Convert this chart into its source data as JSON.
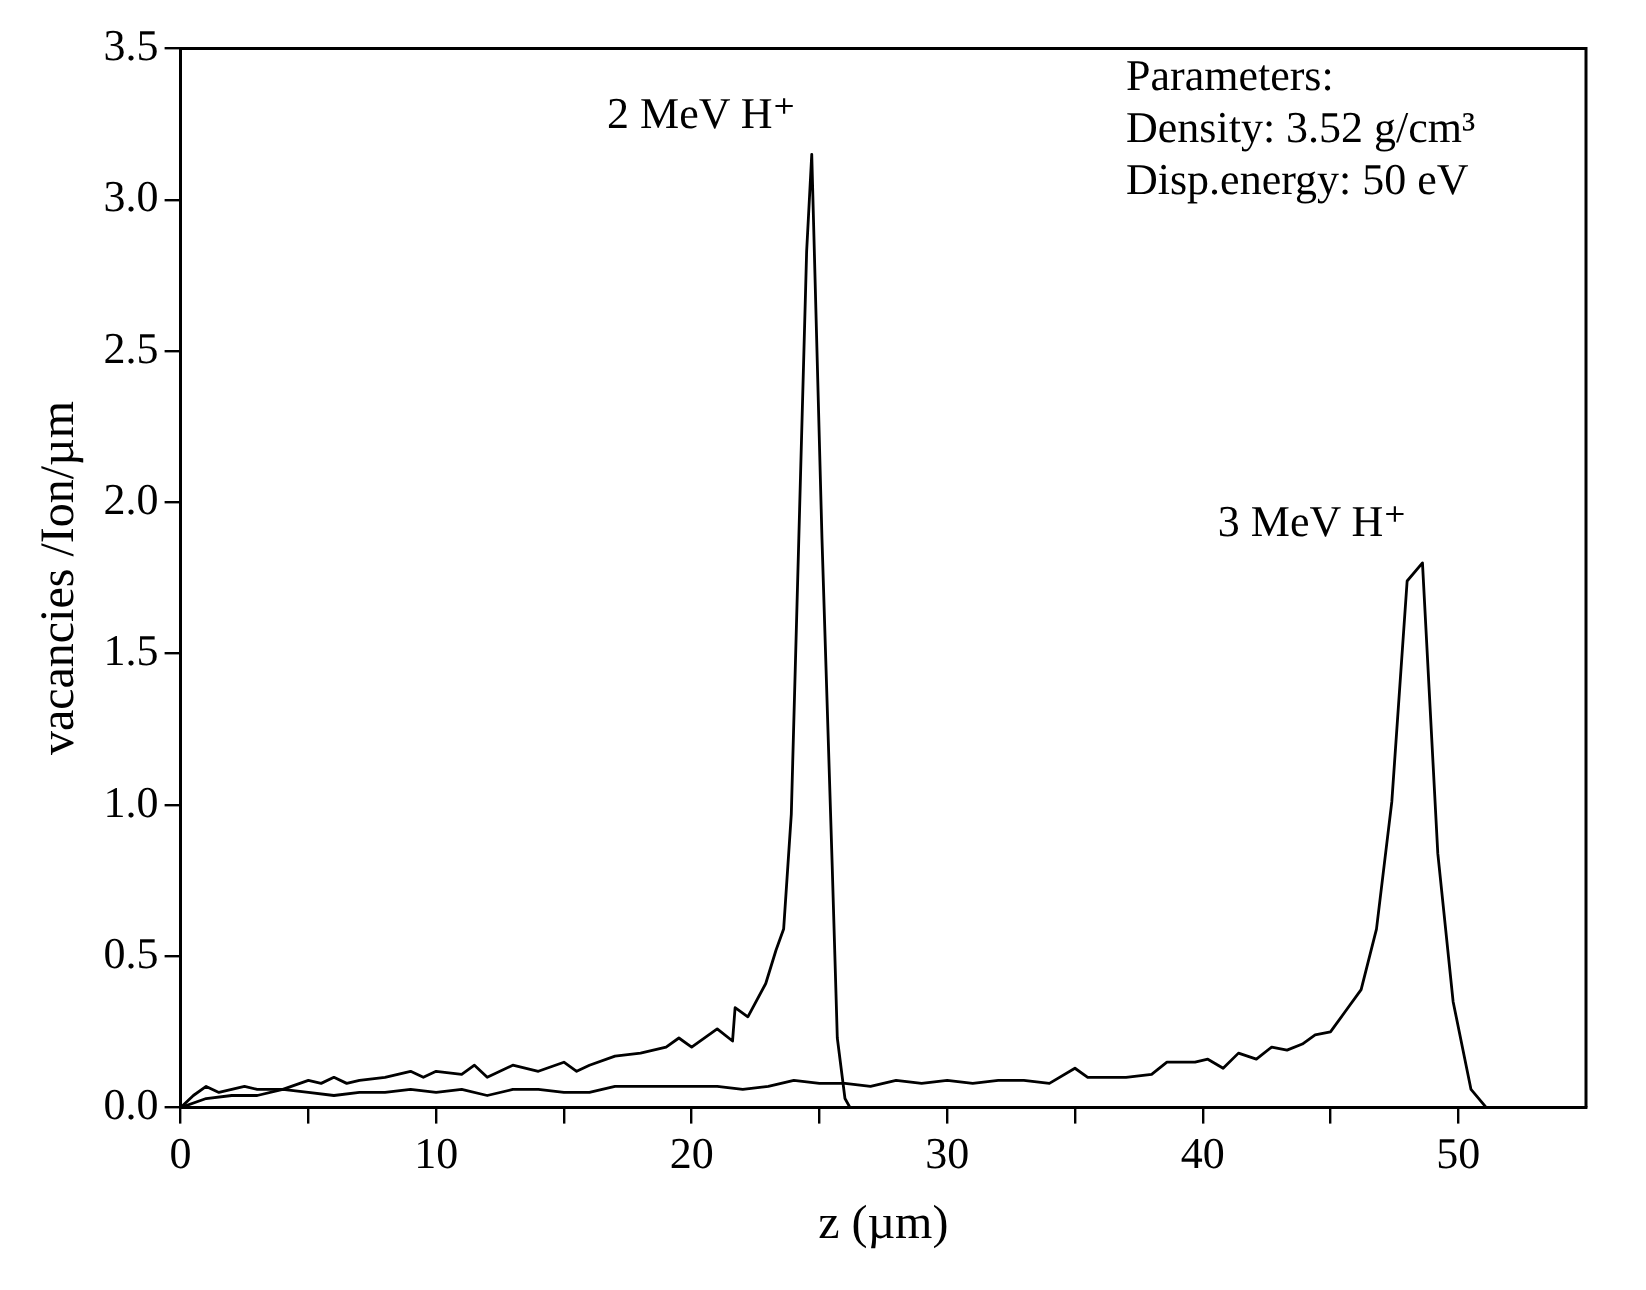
{
  "chart_data": {
    "type": "line",
    "xlabel": "z (µm)",
    "ylabel": "vacancies /Ion/µm",
    "xlim": [
      0,
      55
    ],
    "xticks": [
      0,
      {
        "value": 5,
        "label": null
      },
      10,
      {
        "value": 15,
        "label": null
      },
      20,
      {
        "value": 25,
        "label": null
      },
      30,
      {
        "value": 35,
        "label": null
      },
      40,
      {
        "value": 45,
        "label": null
      },
      50
    ],
    "ylim": [
      0,
      3.5
    ],
    "yticks": [
      {
        "value": 0,
        "label": "0.0"
      },
      0.5,
      {
        "value": 1,
        "label": "1.0"
      },
      1.5,
      {
        "value": 2,
        "label": "2.0"
      },
      2.5,
      {
        "value": 3,
        "label": "3.0"
      },
      3.5
    ],
    "grid": false,
    "legend": false,
    "marker": "none",
    "line_style": "solid",
    "series": [
      {
        "color": "#000000",
        "x": [
          0,
          0.5,
          1,
          1.5,
          2,
          2.5,
          3,
          4,
          5,
          5.5,
          6,
          6.5,
          7,
          8,
          9,
          9.5,
          10,
          11,
          11.5,
          12,
          13,
          14,
          15,
          15.5,
          16,
          17,
          18,
          19,
          19.5,
          20,
          21,
          21.6,
          21.7,
          22.2,
          22.9,
          23.3,
          23.6,
          23.9,
          24.5,
          24.7,
          25.1,
          25.5,
          25.7,
          26.0,
          26.2
        ],
        "values": [
          0,
          0.04,
          0.07,
          0.05,
          0.06,
          0.07,
          0.06,
          0.06,
          0.09,
          0.08,
          0.1,
          0.08,
          0.09,
          0.1,
          0.12,
          0.1,
          0.12,
          0.11,
          0.14,
          0.1,
          0.14,
          0.12,
          0.15,
          0.12,
          0.14,
          0.17,
          0.18,
          0.2,
          0.23,
          0.2,
          0.26,
          0.22,
          0.33,
          0.3,
          0.41,
          0.52,
          0.59,
          0.97,
          2.83,
          3.15,
          1.88,
          0.8,
          0.23,
          0.03,
          0
        ]
      },
      {
        "color": "#000000",
        "x": [
          0,
          1,
          2,
          3,
          4,
          5,
          6,
          7,
          8,
          9,
          10,
          11,
          12,
          13,
          14,
          15,
          16,
          17,
          18,
          19,
          20,
          21,
          22,
          23,
          24,
          25,
          26,
          27,
          28,
          29,
          30,
          31,
          32,
          33,
          34,
          35,
          35.5,
          37,
          38,
          38.6,
          39.7,
          40.2,
          40.8,
          41.4,
          42.1,
          42.7,
          43.3,
          43.9,
          44.4,
          45.0,
          45.6,
          46.2,
          46.8,
          47.4,
          48.0,
          48.6,
          49.2,
          49.8,
          50.5,
          51.1
        ],
        "values": [
          0,
          0.03,
          0.04,
          0.04,
          0.06,
          0.05,
          0.04,
          0.05,
          0.05,
          0.06,
          0.05,
          0.06,
          0.04,
          0.06,
          0.06,
          0.05,
          0.05,
          0.07,
          0.07,
          0.07,
          0.07,
          0.07,
          0.06,
          0.07,
          0.09,
          0.08,
          0.08,
          0.07,
          0.09,
          0.08,
          0.09,
          0.08,
          0.09,
          0.09,
          0.08,
          0.13,
          0.1,
          0.1,
          0.11,
          0.15,
          0.15,
          0.16,
          0.13,
          0.18,
          0.16,
          0.2,
          0.19,
          0.21,
          0.24,
          0.25,
          0.32,
          0.39,
          0.59,
          1.01,
          1.74,
          1.8,
          0.84,
          0.35,
          0.06,
          0
        ]
      }
    ],
    "annotations": [
      {
        "text": "2 MeV H⁺",
        "x": 24.7,
        "y": 3.15
      },
      {
        "text": "3 MeV H⁺",
        "x": 48.6,
        "y": 1.8
      },
      "Parameters:",
      "Density: 3.52 g/cm³",
      "Disp.energy: 50 eV"
    ]
  }
}
